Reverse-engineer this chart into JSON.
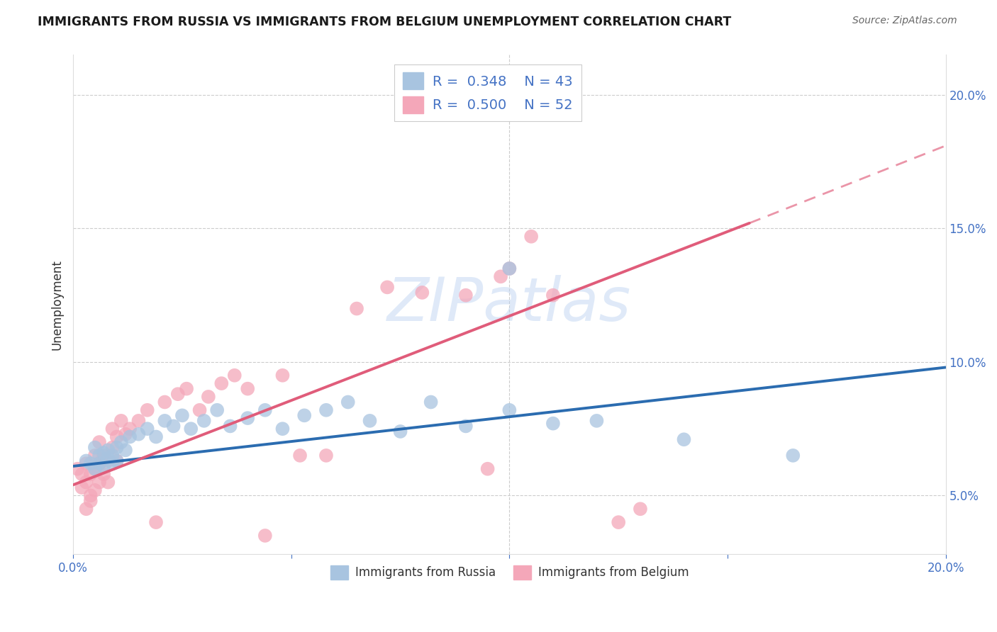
{
  "title": "IMMIGRANTS FROM RUSSIA VS IMMIGRANTS FROM BELGIUM UNEMPLOYMENT CORRELATION CHART",
  "source": "Source: ZipAtlas.com",
  "ylabel": "Unemployment",
  "xlim": [
    0.0,
    0.2
  ],
  "ylim": [
    0.028,
    0.215
  ],
  "x_ticks": [
    0.0,
    0.05,
    0.1,
    0.15,
    0.2
  ],
  "x_tick_labels": [
    "0.0%",
    "",
    "",
    "",
    "20.0%"
  ],
  "y_ticks_right": [
    0.05,
    0.1,
    0.15,
    0.2
  ],
  "y_tick_labels_right": [
    "5.0%",
    "10.0%",
    "15.0%",
    "20.0%"
  ],
  "legend_russia_R": "0.348",
  "legend_russia_N": "43",
  "legend_belgium_R": "0.500",
  "legend_belgium_N": "52",
  "russia_color": "#a8c4e0",
  "belgium_color": "#f4a7b9",
  "russia_line_color": "#2b6cb0",
  "belgium_line_color": "#e05c7a",
  "watermark": "ZIPatlas",
  "russia_scatter_x": [
    0.003,
    0.004,
    0.005,
    0.005,
    0.006,
    0.006,
    0.007,
    0.007,
    0.008,
    0.008,
    0.009,
    0.009,
    0.01,
    0.01,
    0.011,
    0.012,
    0.013,
    0.015,
    0.017,
    0.019,
    0.021,
    0.023,
    0.025,
    0.027,
    0.03,
    0.033,
    0.036,
    0.04,
    0.044,
    0.048,
    0.053,
    0.058,
    0.063,
    0.068,
    0.075,
    0.082,
    0.09,
    0.1,
    0.11,
    0.12,
    0.14,
    0.165,
    0.1
  ],
  "russia_scatter_y": [
    0.063,
    0.062,
    0.068,
    0.06,
    0.065,
    0.062,
    0.066,
    0.061,
    0.064,
    0.067,
    0.062,
    0.065,
    0.068,
    0.063,
    0.07,
    0.067,
    0.072,
    0.073,
    0.075,
    0.072,
    0.078,
    0.076,
    0.08,
    0.075,
    0.078,
    0.082,
    0.076,
    0.079,
    0.082,
    0.075,
    0.08,
    0.082,
    0.085,
    0.078,
    0.074,
    0.085,
    0.076,
    0.082,
    0.077,
    0.078,
    0.071,
    0.065,
    0.135
  ],
  "belgium_scatter_x": [
    0.001,
    0.002,
    0.002,
    0.003,
    0.003,
    0.003,
    0.004,
    0.004,
    0.004,
    0.005,
    0.005,
    0.005,
    0.006,
    0.006,
    0.006,
    0.007,
    0.007,
    0.008,
    0.008,
    0.009,
    0.009,
    0.01,
    0.01,
    0.011,
    0.012,
    0.013,
    0.015,
    0.017,
    0.019,
    0.021,
    0.024,
    0.026,
    0.029,
    0.031,
    0.034,
    0.037,
    0.04,
    0.044,
    0.048,
    0.052,
    0.058,
    0.065,
    0.072,
    0.08,
    0.09,
    0.098,
    0.1,
    0.11,
    0.125,
    0.095,
    0.13,
    0.105
  ],
  "belgium_scatter_y": [
    0.06,
    0.053,
    0.058,
    0.045,
    0.055,
    0.062,
    0.05,
    0.048,
    0.058,
    0.052,
    0.06,
    0.065,
    0.055,
    0.062,
    0.07,
    0.058,
    0.065,
    0.055,
    0.063,
    0.068,
    0.075,
    0.063,
    0.072,
    0.078,
    0.073,
    0.075,
    0.078,
    0.082,
    0.04,
    0.085,
    0.088,
    0.09,
    0.082,
    0.087,
    0.092,
    0.095,
    0.09,
    0.035,
    0.095,
    0.065,
    0.065,
    0.12,
    0.128,
    0.126,
    0.125,
    0.132,
    0.135,
    0.125,
    0.04,
    0.06,
    0.045,
    0.147
  ],
  "russia_trendline": {
    "x_start": 0.0,
    "x_end": 0.2,
    "y_start": 0.061,
    "y_end": 0.098
  },
  "belgium_trendline": {
    "x_start": 0.0,
    "x_end": 0.155,
    "y_start": 0.054,
    "y_end": 0.152
  },
  "belgium_trendline_ext": {
    "x_start": 0.155,
    "x_end": 0.2,
    "y_start": 0.152,
    "y_end": 0.181
  }
}
